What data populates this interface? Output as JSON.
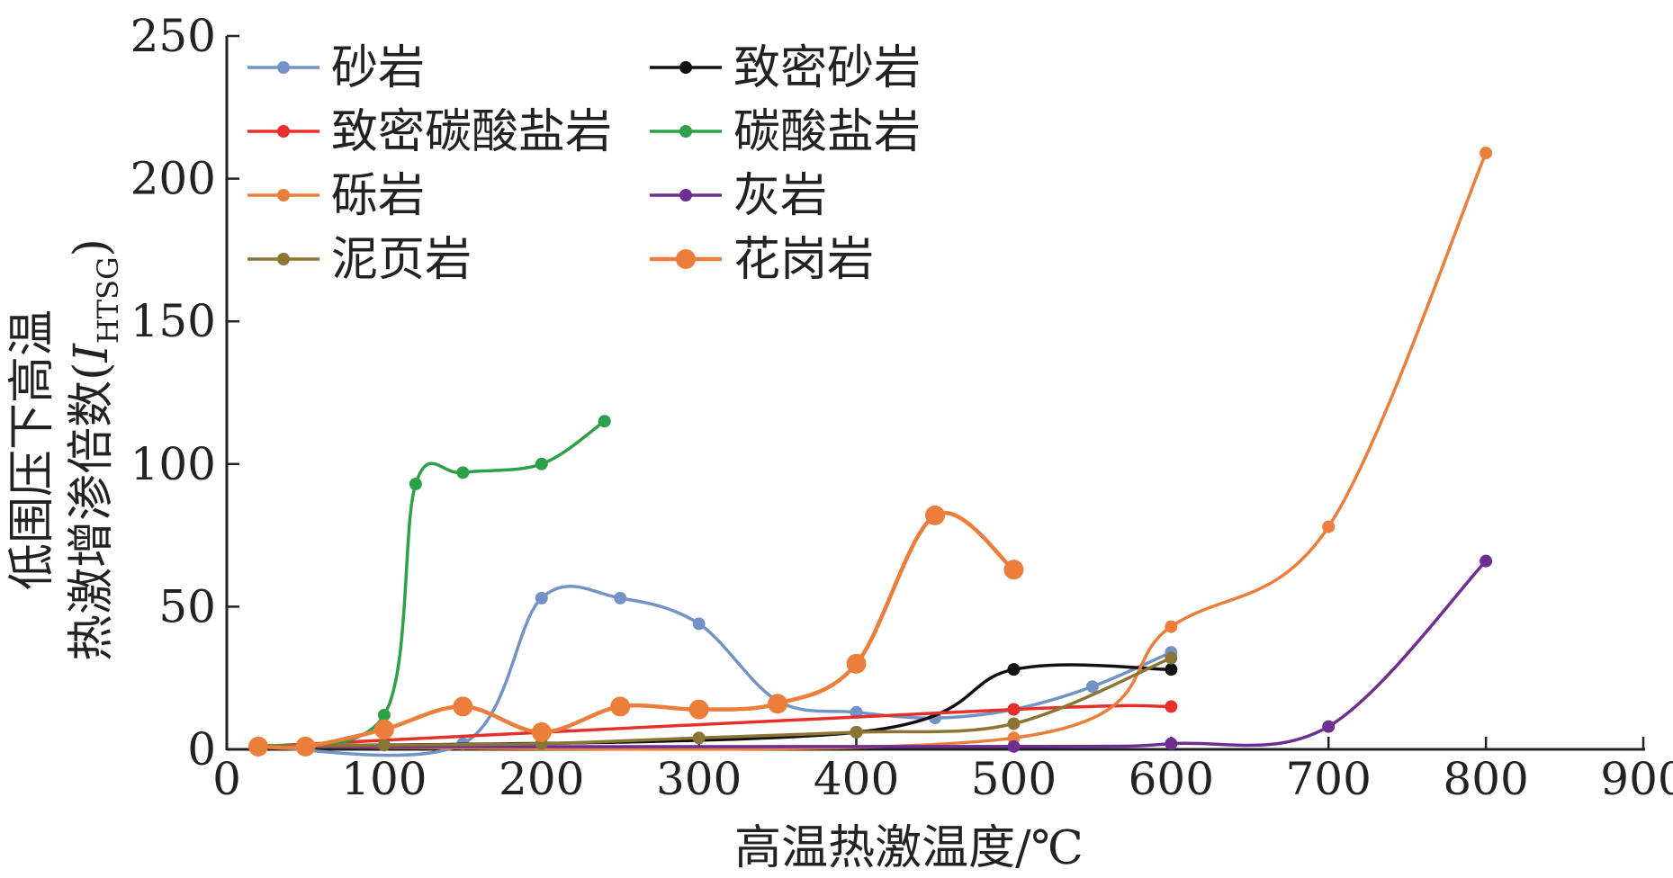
{
  "chart_data": {
    "type": "line",
    "title": "",
    "xlabel": "高温热激温度/℃",
    "ylabel": {
      "line1": "低围压下高温",
      "line2_prefix": "热激增渗倍数(",
      "line2_symbol": "I",
      "line2_subscript": "HTSG",
      "line2_suffix": ")"
    },
    "xlim": [
      0,
      900
    ],
    "ylim": [
      0,
      250
    ],
    "xticks": [
      "0",
      "100",
      "200",
      "300",
      "400",
      "500",
      "600",
      "700",
      "800",
      "900"
    ],
    "yticks": [
      "0",
      "50",
      "100",
      "150",
      "200",
      "250"
    ],
    "grid": false,
    "legend_position": "top-left",
    "series": [
      {
        "name": "砂岩",
        "color": "#7393c6",
        "marker": "small",
        "x": [
          20,
          150,
          200,
          250,
          300,
          350,
          400,
          450,
          500,
          550,
          600
        ],
        "y": [
          1,
          2,
          53,
          53,
          44,
          17,
          13,
          11,
          14,
          22,
          34
        ]
      },
      {
        "name": "致密砂岩",
        "color": "#111111",
        "marker": "small",
        "x": [
          20,
          400,
          500,
          600
        ],
        "y": [
          1,
          6,
          28,
          28
        ]
      },
      {
        "name": "致密碳酸盐岩",
        "color": "#e8302a",
        "marker": "small",
        "x": [
          20,
          500,
          600
        ],
        "y": [
          1,
          14,
          15
        ]
      },
      {
        "name": "碳酸盐岩",
        "color": "#2ea048",
        "marker": "small",
        "x": [
          20,
          100,
          120,
          150,
          200,
          240
        ],
        "y": [
          1,
          12,
          93,
          97,
          100,
          115
        ]
      },
      {
        "name": "砾岩",
        "color": "#ea7e3a",
        "marker": "small",
        "x": [
          20,
          500,
          600,
          700,
          800
        ],
        "y": [
          1,
          4,
          43,
          78,
          209
        ]
      },
      {
        "name": "灰岩",
        "color": "#6f2e92",
        "marker": "small",
        "x": [
          20,
          500,
          600,
          700,
          800
        ],
        "y": [
          1,
          1,
          2,
          8,
          66
        ]
      },
      {
        "name": "泥页岩",
        "color": "#8b7535",
        "marker": "small",
        "x": [
          20,
          100,
          200,
          300,
          400,
          500,
          600
        ],
        "y": [
          1,
          1.5,
          2,
          4,
          6,
          9,
          32
        ]
      },
      {
        "name": "花岗岩",
        "color": "#ea7e3a",
        "marker": "large",
        "x": [
          20,
          50,
          100,
          150,
          200,
          250,
          300,
          350,
          400,
          450,
          500
        ],
        "y": [
          1,
          1,
          7,
          15,
          6,
          15,
          14,
          16,
          30,
          82,
          63
        ]
      }
    ]
  }
}
